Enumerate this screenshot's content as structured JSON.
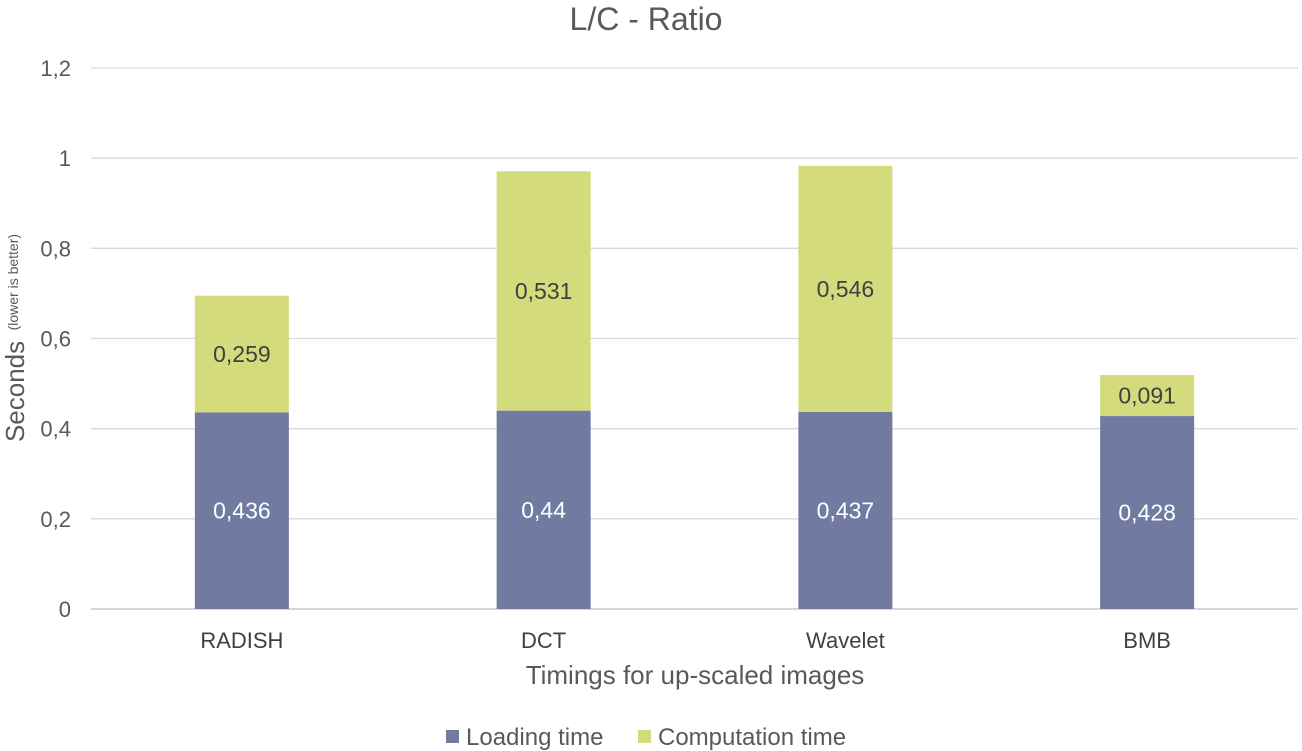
{
  "chart_data": {
    "type": "bar",
    "stacked": true,
    "title": "L/C - Ratio",
    "xlabel": "Timings for up-scaled images",
    "ylabel": "Seconds",
    "ylabel_sub": "(lower is better)",
    "categories": [
      "RADISH",
      "DCT",
      "Wavelet",
      "BMB"
    ],
    "series": [
      {
        "name": "Loading time",
        "values": [
          0.436,
          0.44,
          0.437,
          0.428
        ],
        "labels": [
          "0,436",
          "0,44",
          "0,437",
          "0,428"
        ],
        "color": "#717ba1",
        "label_color": "#ffffff"
      },
      {
        "name": "Computation time",
        "values": [
          0.259,
          0.531,
          0.546,
          0.091
        ],
        "labels": [
          "0,259",
          "0,531",
          "0,546",
          "0,091"
        ],
        "color": "#d4db7d",
        "label_color": "#404040"
      }
    ],
    "ylim": [
      0,
      1.2
    ],
    "yticks": [
      0,
      0.2,
      0.4,
      0.6,
      0.8,
      1,
      1.2
    ],
    "ytick_labels": [
      "0",
      "0,2",
      "0,4",
      "0,6",
      "0,8",
      "1",
      "1,2"
    ],
    "grid": true,
    "legend_position": "bottom"
  }
}
